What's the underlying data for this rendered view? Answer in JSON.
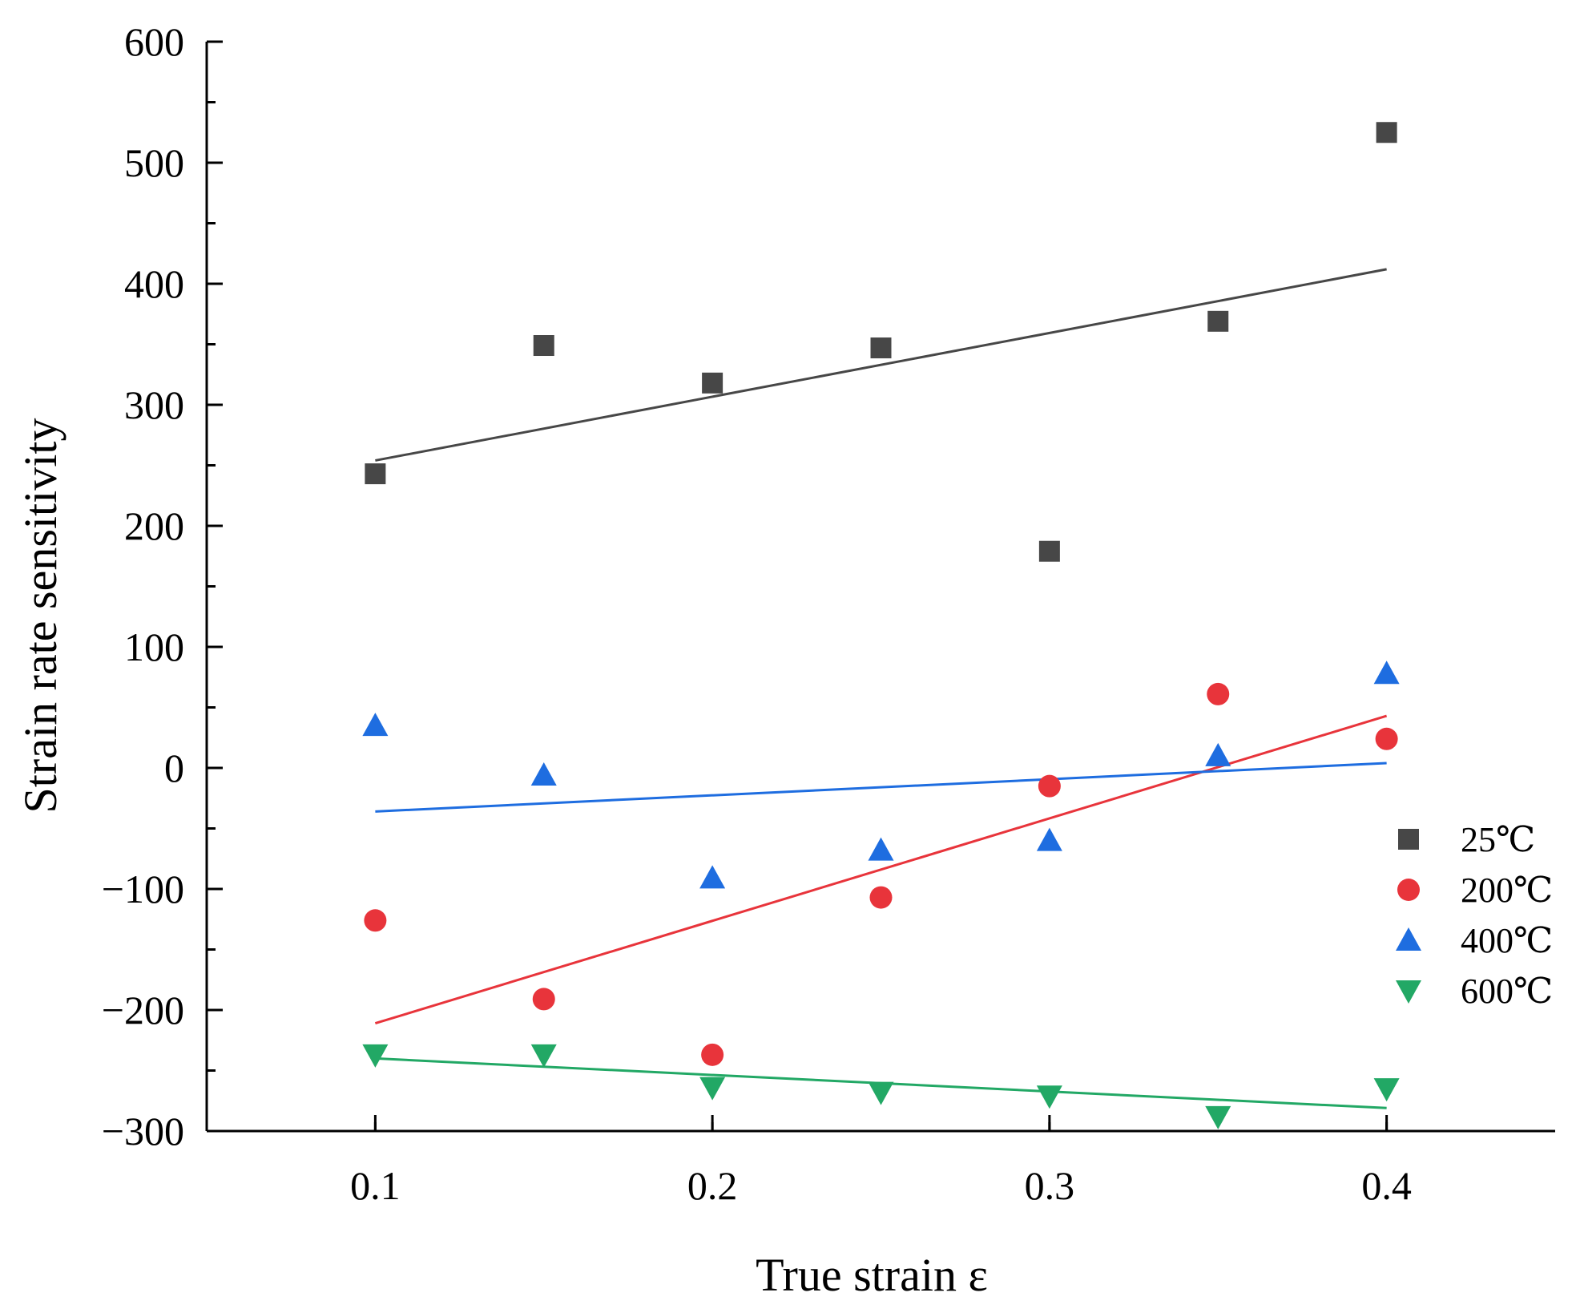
{
  "chart_data": {
    "type": "scatter",
    "title": "",
    "xlabel": "True strain ε",
    "ylabel": "Strain rate sensitivity",
    "xlim": [
      0.05,
      0.45
    ],
    "ylim": [
      -300,
      600
    ],
    "xticks": [
      0.1,
      0.2,
      0.3,
      0.4
    ],
    "xtick_labels": [
      "0.1",
      "0.2",
      "0.3",
      "0.4"
    ],
    "yticks": [
      -300,
      -200,
      -100,
      0,
      100,
      200,
      300,
      400,
      500,
      600
    ],
    "ytick_labels": [
      "−300",
      "−200",
      "−100",
      "0",
      "100",
      "200",
      "300",
      "400",
      "500",
      "600"
    ],
    "grid": false,
    "legend_position": "right",
    "series": [
      {
        "name": "25℃",
        "marker": "square",
        "color": "#474747",
        "x": [
          0.1,
          0.15,
          0.2,
          0.25,
          0.3,
          0.35,
          0.4
        ],
        "y": [
          243,
          349,
          318,
          347,
          179,
          369,
          525
        ],
        "fit": [
          [
            0.1,
            254
          ],
          [
            0.4,
            412
          ]
        ]
      },
      {
        "name": "200℃",
        "marker": "circle",
        "color": "#e8343b",
        "x": [
          0.1,
          0.15,
          0.2,
          0.25,
          0.3,
          0.35,
          0.4
        ],
        "y": [
          -126,
          -191,
          -237,
          -107,
          -15,
          61,
          24
        ],
        "fit": [
          [
            0.1,
            -211
          ],
          [
            0.4,
            43
          ]
        ]
      },
      {
        "name": "400℃",
        "marker": "triangle-up",
        "color": "#1e6de0",
        "x": [
          0.1,
          0.15,
          0.2,
          0.25,
          0.3,
          0.35,
          0.4
        ],
        "y": [
          35,
          -6,
          -91,
          -68,
          -60,
          10,
          78
        ],
        "fit": [
          [
            0.1,
            -36
          ],
          [
            0.4,
            4
          ]
        ]
      },
      {
        "name": "600℃",
        "marker": "triangle-down",
        "color": "#22a865",
        "x": [
          0.1,
          0.15,
          0.2,
          0.25,
          0.3,
          0.35,
          0.4
        ],
        "y": [
          -237,
          -237,
          -264,
          -268,
          -271,
          -288,
          -265
        ],
        "fit": [
          [
            0.1,
            -240
          ],
          [
            0.4,
            -281
          ]
        ]
      }
    ]
  }
}
